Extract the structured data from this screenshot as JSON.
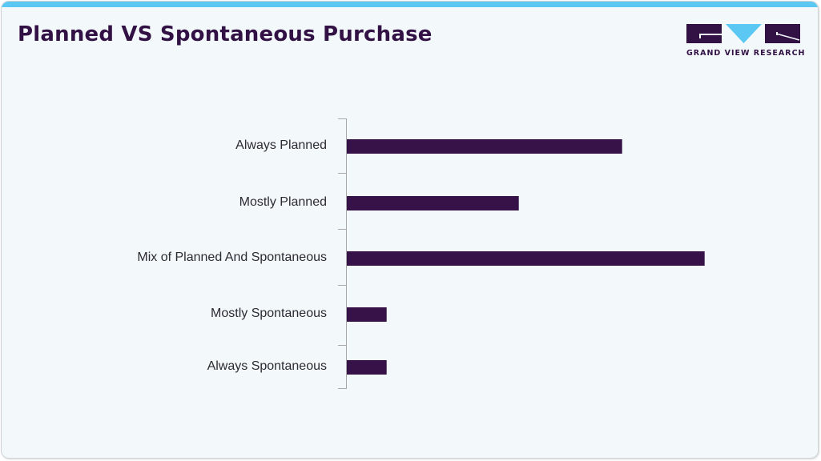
{
  "header": {
    "title": "Planned VS Spontaneous Purchase",
    "accent_color": "#5ac8f3",
    "title_color": "#321245"
  },
  "logo": {
    "text": "GRAND VIEW RESEARCH",
    "colors": {
      "dark": "#321245",
      "light": "#5ac8f3"
    }
  },
  "chart_data": {
    "type": "bar",
    "orientation": "horizontal",
    "title": "Planned VS Spontaneous Purchase",
    "categories": [
      "Always Planned",
      "Mostly Planned",
      "Mix of Planned And Spontaneous",
      "Mostly Spontaneous",
      "Always Spontaneous"
    ],
    "values": [
      77,
      48,
      100,
      11,
      11
    ],
    "value_units": "relative length (% of longest bar), no axis values shown",
    "bar_color": "#361248",
    "xlabel": "",
    "ylabel": "",
    "grid": false,
    "legend": null,
    "x_axis_visible": false
  }
}
